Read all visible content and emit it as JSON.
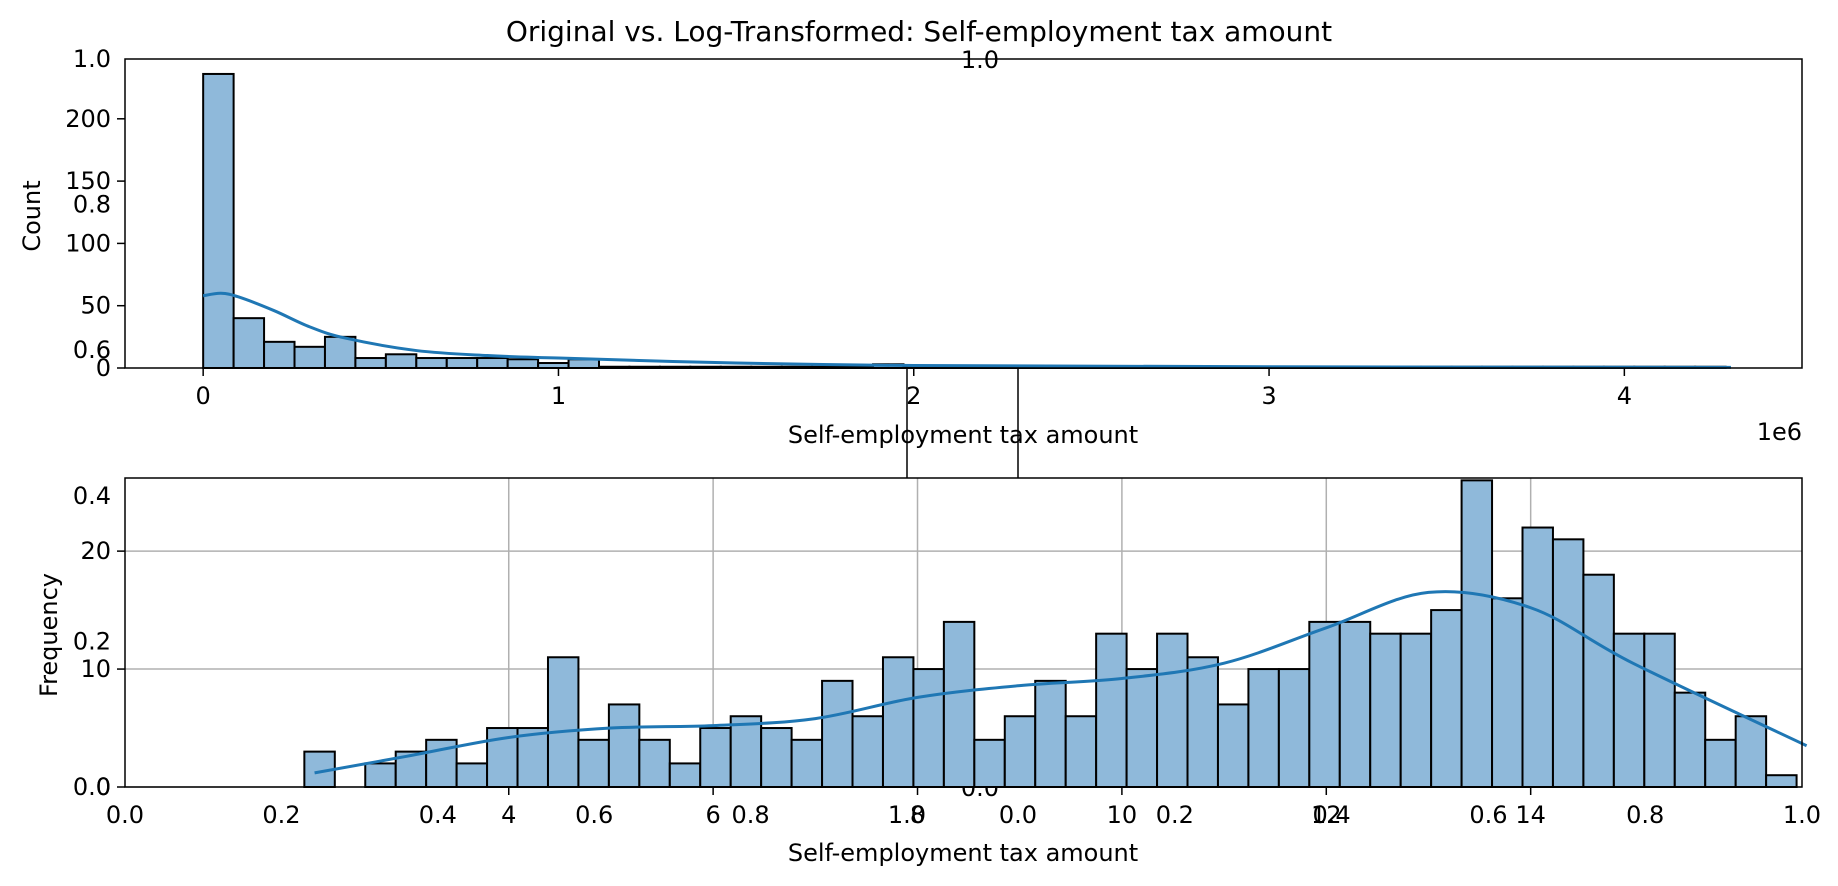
{
  "figure": {
    "title": "Original vs. Log-Transformed: Self-employment tax amount"
  },
  "chart_data": [
    {
      "type": "histogram",
      "panel": "original",
      "xlabel": "Self-employment tax amount",
      "ylabel": "Count",
      "x_offset_label": "1e6",
      "xlim": [
        -0.22,
        4.5
      ],
      "ylim": [
        0,
        248
      ],
      "xticks": [
        0,
        1,
        2,
        3,
        4
      ],
      "yticks": [
        0,
        50,
        100,
        150,
        200
      ],
      "grid": false,
      "bin_start": 0,
      "bin_width": 0.0857,
      "counts": [
        236,
        40,
        21,
        17,
        25,
        8,
        11,
        8,
        8,
        8,
        7,
        4,
        7,
        1,
        1,
        1,
        1,
        1,
        1,
        1,
        1,
        1,
        3,
        1,
        1,
        1,
        1,
        1,
        1,
        1,
        1,
        1,
        1,
        1,
        1,
        1,
        1,
        1,
        1,
        1,
        1,
        1,
        1,
        1,
        1,
        1,
        1,
        1,
        1,
        1
      ],
      "kde": {
        "x": [
          0,
          0.05,
          0.1,
          0.2,
          0.3,
          0.4,
          0.6,
          0.8,
          1.0,
          1.5,
          2.0,
          3.0,
          4.3
        ],
        "y": [
          58,
          60,
          57,
          46,
          33,
          24,
          14,
          10,
          8,
          4,
          2,
          1,
          0.5
        ]
      },
      "color": "#1f77b4",
      "bar_fill": "#8fb9da"
    },
    {
      "type": "histogram",
      "panel": "log-transformed",
      "xlabel": "Self-employment tax amount",
      "ylabel": "Frequency",
      "xlim": [
        0.245,
        16.655
      ],
      "ylim": [
        0,
        26.2
      ],
      "xticks": [
        4,
        6,
        8,
        10,
        12,
        14
      ],
      "yticks": [
        0,
        10,
        20
      ],
      "grid": true,
      "bin_start": 2.0,
      "bin_width": 0.298,
      "counts": [
        3,
        0,
        2,
        3,
        4,
        2,
        5,
        5,
        11,
        4,
        7,
        4,
        2,
        5,
        6,
        5,
        4,
        9,
        6,
        11,
        10,
        14,
        4,
        6,
        9,
        6,
        13,
        10,
        13,
        11,
        7,
        10,
        10,
        14,
        14,
        13,
        13,
        15,
        26,
        16,
        22,
        21,
        18,
        13,
        13,
        8,
        4,
        6,
        1
      ],
      "kde": {
        "x": [
          2.1,
          3,
          4,
          5,
          6,
          7,
          8,
          9,
          10,
          11,
          12,
          13,
          14,
          15,
          16.7
        ],
        "y": [
          1.2,
          2.6,
          4.2,
          5.0,
          5.2,
          5.8,
          7.6,
          8.6,
          9.2,
          10.5,
          13.5,
          16.5,
          15.2,
          10.5,
          3.5
        ]
      },
      "color": "#1f77b4",
      "bar_fill": "#8fb9da"
    }
  ],
  "ghost_axes": {
    "x_tick_labels": [
      "0.0",
      "0.2",
      "0.4",
      "0.6",
      "0.8",
      "1.0"
    ],
    "y_tick_labels": [
      "0.0",
      "0.2",
      "0.4",
      "0.6",
      "0.8",
      "1.0"
    ],
    "left_x_tick_labels": [
      "0.0",
      "0.2",
      "0.4",
      "0.6",
      "0.8",
      "1.0"
    ],
    "left_y_tick_labels": [
      "0.0",
      "0.2",
      "0.4",
      "0.6",
      "0.8",
      "1.0"
    ],
    "right_x_tick_labels": [
      "0.0",
      "0.2",
      "0.4",
      "0.6",
      "0.8",
      "1.0"
    ]
  }
}
